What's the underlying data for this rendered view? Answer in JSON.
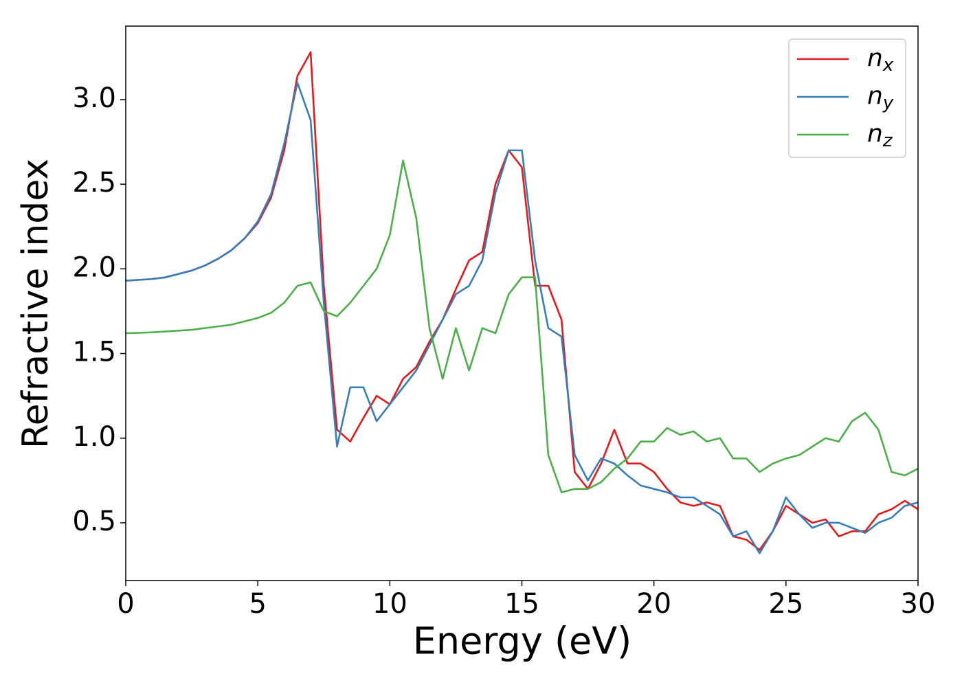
{
  "chart_data": {
    "type": "line",
    "xlabel": "Energy (eV)",
    "ylabel": "Refractive index",
    "x": [
      0,
      0.5,
      1,
      1.5,
      2,
      2.5,
      3,
      3.5,
      4,
      4.5,
      5,
      5.5,
      6,
      6.5,
      7,
      7.5,
      8,
      8.5,
      9,
      9.5,
      10,
      10.5,
      11,
      11.5,
      12,
      12.5,
      13,
      13.5,
      14,
      14.5,
      15,
      15.5,
      16,
      16.5,
      17,
      17.5,
      18,
      18.5,
      19,
      19.5,
      20,
      20.5,
      21,
      21.5,
      22,
      22.5,
      23,
      23.5,
      24,
      24.5,
      25,
      25.5,
      26,
      26.5,
      27,
      27.5,
      28,
      28.5,
      29,
      29.5,
      30
    ],
    "series": [
      {
        "name": "n_x",
        "color": "#e41a1c",
        "values": [
          1.93,
          1.935,
          1.94,
          1.95,
          1.97,
          1.99,
          2.02,
          2.06,
          2.11,
          2.18,
          2.27,
          2.42,
          2.7,
          3.14,
          3.28,
          1.9,
          1.05,
          0.98,
          1.12,
          1.25,
          1.2,
          1.35,
          1.42,
          1.57,
          1.7,
          1.88,
          2.05,
          2.1,
          2.5,
          2.7,
          2.6,
          1.9,
          1.9,
          1.7,
          0.8,
          0.7,
          0.85,
          1.05,
          0.85,
          0.85,
          0.8,
          0.7,
          0.62,
          0.6,
          0.62,
          0.6,
          0.42,
          0.4,
          0.34,
          0.45,
          0.6,
          0.55,
          0.5,
          0.52,
          0.42,
          0.45,
          0.45,
          0.55,
          0.58,
          0.63,
          0.58
        ]
      },
      {
        "name": "n_y",
        "color": "#377eb8",
        "values": [
          1.93,
          1.935,
          1.94,
          1.95,
          1.97,
          1.99,
          2.02,
          2.06,
          2.11,
          2.18,
          2.28,
          2.44,
          2.74,
          3.1,
          2.88,
          1.8,
          0.95,
          1.3,
          1.3,
          1.1,
          1.2,
          1.3,
          1.4,
          1.55,
          1.7,
          1.85,
          1.9,
          2.05,
          2.45,
          2.7,
          2.7,
          2.05,
          1.65,
          1.6,
          0.9,
          0.75,
          0.88,
          0.85,
          0.78,
          0.72,
          0.7,
          0.68,
          0.65,
          0.65,
          0.6,
          0.55,
          0.42,
          0.45,
          0.32,
          0.45,
          0.65,
          0.55,
          0.47,
          0.5,
          0.5,
          0.47,
          0.44,
          0.5,
          0.53,
          0.6,
          0.62
        ]
      },
      {
        "name": "n_z",
        "color": "#4daf4a",
        "values": [
          1.62,
          1.622,
          1.625,
          1.63,
          1.635,
          1.64,
          1.65,
          1.66,
          1.67,
          1.69,
          1.71,
          1.74,
          1.8,
          1.9,
          1.92,
          1.75,
          1.72,
          1.8,
          1.9,
          2.0,
          2.2,
          2.64,
          2.3,
          1.65,
          1.35,
          1.65,
          1.4,
          1.65,
          1.62,
          1.85,
          1.95,
          1.95,
          0.9,
          0.68,
          0.7,
          0.7,
          0.74,
          0.82,
          0.88,
          0.98,
          0.98,
          1.06,
          1.02,
          1.04,
          0.98,
          1.0,
          0.88,
          0.88,
          0.8,
          0.85,
          0.88,
          0.9,
          0.95,
          1.0,
          0.98,
          1.1,
          1.15,
          1.05,
          0.8,
          0.78,
          0.82
        ]
      }
    ],
    "xlim": [
      0,
      30
    ],
    "xticks": [
      0,
      5,
      10,
      15,
      20,
      25,
      30
    ],
    "ylim": [
      0.159,
      3.434
    ],
    "yticks": [
      0.5,
      {
        "value": 1,
        "label": "1.0"
      },
      1.5,
      {
        "value": 2,
        "label": "2.0"
      },
      2.5,
      {
        "value": 3,
        "label": "3.0"
      }
    ],
    "grid": false,
    "legend": "upper right"
  }
}
